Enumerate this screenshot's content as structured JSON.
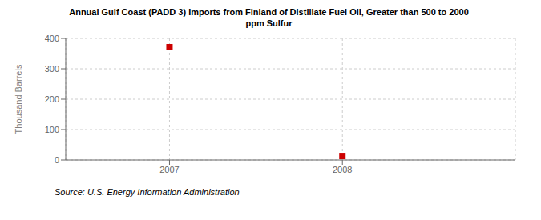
{
  "chart_data": {
    "type": "scatter",
    "title": "Annual Gulf Coast (PADD 3) Imports from Finland of Distillate Fuel Oil, Greater than 500 to 2000\nppm Sulfur",
    "ylabel": "Thousand Barrels",
    "source": "Source: U.S. Energy Information Administration",
    "x": [
      2007,
      2008
    ],
    "values": [
      371,
      13
    ],
    "color": "#cc0000",
    "marker": "square",
    "xlim": [
      2006.4,
      2009.0
    ],
    "ylim": [
      0,
      400
    ],
    "xticks": [
      2007,
      2008
    ],
    "yticks": [
      0,
      100,
      200,
      300,
      400
    ],
    "grid": true
  }
}
